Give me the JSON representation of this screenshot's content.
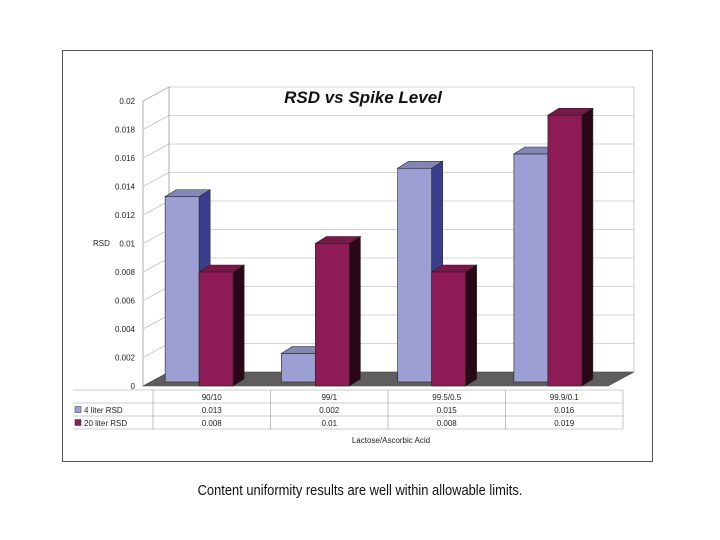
{
  "chart_data": {
    "type": "bar",
    "title": "RSD vs Spike Level",
    "ylabel": "RSD",
    "xlabel": "Lactose/Ascorbic Acid",
    "categories": [
      "90/10",
      "99/1",
      "99.5/0.5",
      "99.9/0.1"
    ],
    "series": [
      {
        "name": "4 liter RSD",
        "values": [
          0.013,
          0.002,
          0.015,
          0.016
        ],
        "color": "#9b9fd3"
      },
      {
        "name": "20 liter RSD",
        "values": [
          0.008,
          0.01,
          0.008,
          0.019
        ],
        "color": "#8e1b55"
      }
    ],
    "table_values": [
      [
        "0.013",
        "0.002",
        "0.015",
        "0.016"
      ],
      [
        "0.008",
        "0.01",
        "0.008",
        "0.019"
      ]
    ],
    "yticks": [
      "0",
      "0.002",
      "0.004",
      "0.006",
      "0.008",
      "0.01",
      "0.012",
      "0.014",
      "0.016",
      "0.018",
      "0.02"
    ],
    "ylim": [
      0,
      0.02
    ],
    "grid": true,
    "legend": "table"
  },
  "caption": "Content uniformity results are well within allowable limits."
}
